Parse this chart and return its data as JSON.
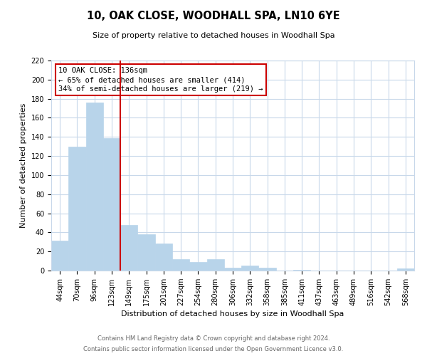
{
  "title": "10, OAK CLOSE, WOODHALL SPA, LN10 6YE",
  "subtitle": "Size of property relative to detached houses in Woodhall Spa",
  "xlabel": "Distribution of detached houses by size in Woodhall Spa",
  "ylabel": "Number of detached properties",
  "bar_labels": [
    "44sqm",
    "70sqm",
    "96sqm",
    "123sqm",
    "149sqm",
    "175sqm",
    "201sqm",
    "227sqm",
    "254sqm",
    "280sqm",
    "306sqm",
    "332sqm",
    "358sqm",
    "385sqm",
    "411sqm",
    "437sqm",
    "463sqm",
    "489sqm",
    "516sqm",
    "542sqm",
    "568sqm"
  ],
  "bar_values": [
    31,
    130,
    176,
    139,
    48,
    38,
    28,
    12,
    9,
    12,
    3,
    5,
    3,
    0,
    1,
    0,
    0,
    0,
    0,
    0,
    2
  ],
  "bar_color": "#b8d4ea",
  "bar_edge_color": "#b8d4ea",
  "vline_color": "#cc0000",
  "vline_pos": 3.5,
  "ylim": [
    0,
    220
  ],
  "yticks": [
    0,
    20,
    40,
    60,
    80,
    100,
    120,
    140,
    160,
    180,
    200,
    220
  ],
  "annotation_line1": "10 OAK CLOSE: 136sqm",
  "annotation_line2": "← 65% of detached houses are smaller (414)",
  "annotation_line3": "34% of semi-detached houses are larger (219) →",
  "footer_line1": "Contains HM Land Registry data © Crown copyright and database right 2024.",
  "footer_line2": "Contains public sector information licensed under the Open Government Licence v3.0.",
  "background_color": "#ffffff",
  "grid_color": "#c8d8ea",
  "annotation_box_edge_color": "#cc0000",
  "annotation_box_bg": "#ffffff",
  "title_fontsize": 10.5,
  "subtitle_fontsize": 8,
  "axis_label_fontsize": 8,
  "tick_fontsize": 7,
  "annotation_fontsize": 7.5,
  "footer_fontsize": 6
}
